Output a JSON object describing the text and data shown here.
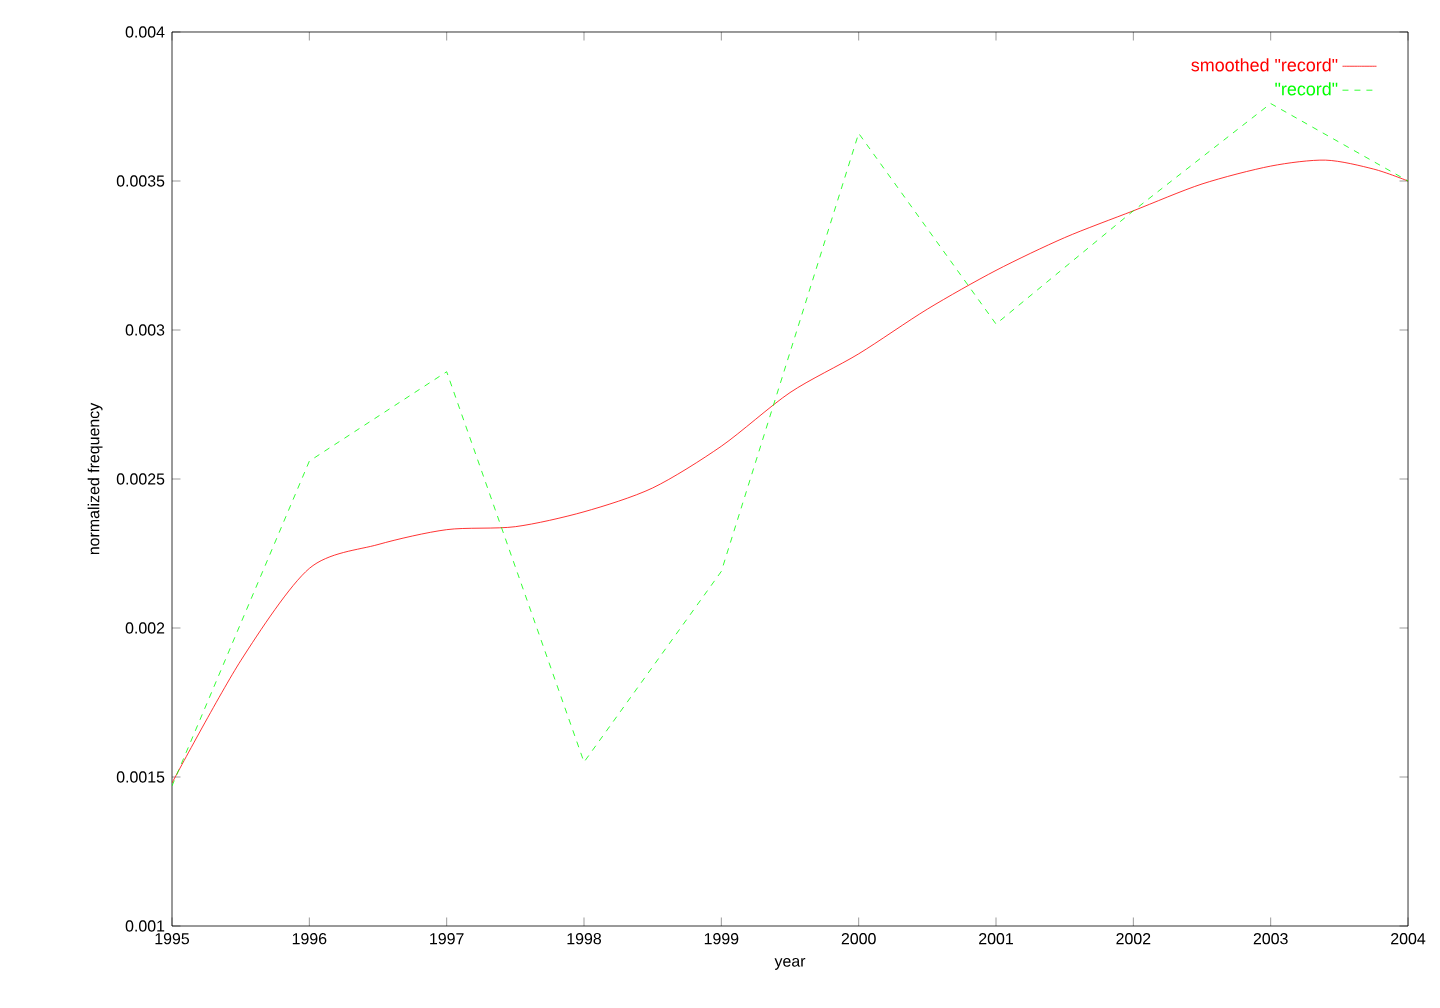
{
  "chart_data": {
    "type": "line",
    "xlabel": "year",
    "ylabel": "normalized frequency",
    "xlim": [
      1995,
      2004
    ],
    "ylim": [
      0.001,
      0.004
    ],
    "xticks": [
      1995,
      1996,
      1997,
      1998,
      1999,
      2000,
      2001,
      2002,
      2003,
      2004
    ],
    "yticks": [
      0.001,
      0.0015,
      0.002,
      0.0025,
      0.003,
      0.0035,
      0.004
    ],
    "legend": "top right",
    "grid": false,
    "series": [
      {
        "name": "smoothed \"record\"",
        "color": "#ff0000",
        "line_style": "solid",
        "x": [
          1995,
          1995.5,
          1996,
          1996.5,
          1997,
          1997.5,
          1998,
          1998.5,
          1999,
          1999.5,
          2000,
          2000.5,
          2001,
          2001.5,
          2002,
          2002.5,
          2003,
          2003.4,
          2003.75,
          2004
        ],
        "values": [
          0.00148,
          0.00189,
          0.0022,
          0.00228,
          0.00233,
          0.00234,
          0.00239,
          0.00247,
          0.00261,
          0.00279,
          0.00292,
          0.00307,
          0.0032,
          0.00331,
          0.0034,
          0.00349,
          0.00355,
          0.00357,
          0.00354,
          0.0035
        ]
      },
      {
        "name": "\"record\"",
        "color": "#00ff00",
        "line_style": "dashed",
        "x": [
          1995,
          1996,
          1997,
          1998,
          1999,
          2000,
          2001,
          2002,
          2003,
          2004
        ],
        "values": [
          0.00147,
          0.00256,
          0.00286,
          0.00155,
          0.00219,
          0.00366,
          0.00302,
          0.0034,
          0.00376,
          0.0035
        ]
      }
    ]
  }
}
